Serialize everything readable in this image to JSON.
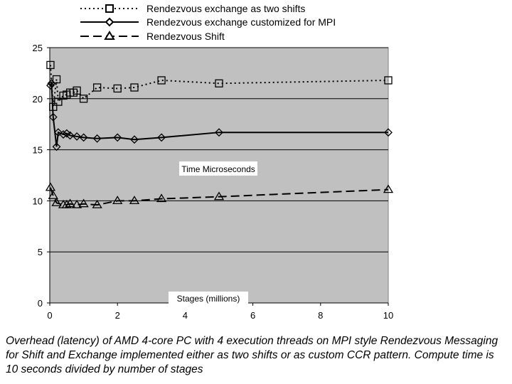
{
  "chart_data": {
    "type": "line",
    "title": "",
    "xlabel": "Stages (millions)",
    "ylabel": "Time Microseconds",
    "xlim": [
      0,
      10
    ],
    "ylim": [
      0,
      25
    ],
    "xticks": [
      0,
      2,
      4,
      6,
      8,
      10
    ],
    "yticks": [
      0,
      5,
      10,
      15,
      20,
      25
    ],
    "grid": true,
    "plot_background": "#c0c0c0",
    "legend_position": "top",
    "series": [
      {
        "name": "Rendezvous exchange as two shifts",
        "marker": "square",
        "line": "dotted",
        "x": [
          0.02,
          0.1,
          0.2,
          0.25,
          0.4,
          0.5,
          0.6,
          0.7,
          0.8,
          1.0,
          1.4,
          2.0,
          2.5,
          3.3,
          5.0,
          10.0
        ],
        "y": [
          23.3,
          19.2,
          21.9,
          19.7,
          20.3,
          20.4,
          20.6,
          20.6,
          20.8,
          20.0,
          21.1,
          21.0,
          21.1,
          21.8,
          21.5,
          21.8
        ]
      },
      {
        "name": "Rendezvous exchange customized for MPI",
        "marker": "diamond",
        "line": "solid",
        "x": [
          0.02,
          0.05,
          0.1,
          0.2,
          0.25,
          0.4,
          0.5,
          0.6,
          0.8,
          1.0,
          1.4,
          2.0,
          2.5,
          3.3,
          5.0,
          10.0
        ],
        "y": [
          21.3,
          21.5,
          18.2,
          15.3,
          16.7,
          16.5,
          16.6,
          16.4,
          16.3,
          16.2,
          16.1,
          16.2,
          16.0,
          16.2,
          16.7,
          16.7
        ]
      },
      {
        "name": "Rendezvous Shift",
        "marker": "triangle",
        "line": "dashed",
        "x": [
          0.02,
          0.1,
          0.2,
          0.4,
          0.5,
          0.6,
          0.8,
          1.0,
          1.4,
          2.0,
          2.5,
          3.3,
          5.0,
          10.0
        ],
        "y": [
          11.3,
          10.5,
          9.8,
          9.6,
          9.6,
          9.7,
          9.6,
          9.7,
          9.6,
          10.0,
          10.0,
          10.2,
          10.4,
          11.1
        ]
      }
    ]
  },
  "caption": "Overhead (latency) of AMD 4-core PC with 4 execution threads on MPI style Rendezvous Messaging for Shift and Exchange implemented either as two shifts or as custom CCR pattern. Compute time is 10 seconds divided by number of stages"
}
